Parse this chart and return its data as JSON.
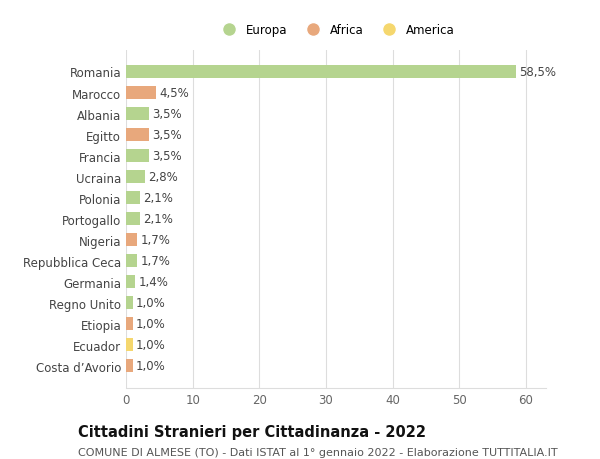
{
  "categories": [
    "Romania",
    "Marocco",
    "Albania",
    "Egitto",
    "Francia",
    "Ucraina",
    "Polonia",
    "Portogallo",
    "Nigeria",
    "Repubblica Ceca",
    "Germania",
    "Regno Unito",
    "Etiopia",
    "Ecuador",
    "Costa d’Avorio"
  ],
  "values": [
    58.5,
    4.5,
    3.5,
    3.5,
    3.5,
    2.8,
    2.1,
    2.1,
    1.7,
    1.7,
    1.4,
    1.0,
    1.0,
    1.0,
    1.0
  ],
  "labels": [
    "58,5%",
    "4,5%",
    "3,5%",
    "3,5%",
    "3,5%",
    "2,8%",
    "2,1%",
    "2,1%",
    "1,7%",
    "1,7%",
    "1,4%",
    "1,0%",
    "1,0%",
    "1,0%",
    "1,0%"
  ],
  "colors": [
    "#b5d48f",
    "#e8a87c",
    "#b5d48f",
    "#e8a87c",
    "#b5d48f",
    "#b5d48f",
    "#b5d48f",
    "#b5d48f",
    "#e8a87c",
    "#b5d48f",
    "#b5d48f",
    "#b5d48f",
    "#e8a87c",
    "#f5d76e",
    "#e8a87c"
  ],
  "legend": [
    {
      "label": "Europa",
      "color": "#b5d48f"
    },
    {
      "label": "Africa",
      "color": "#e8a87c"
    },
    {
      "label": "America",
      "color": "#f5d76e"
    }
  ],
  "xlim": [
    0,
    63
  ],
  "xticks": [
    0,
    10,
    20,
    30,
    40,
    50,
    60
  ],
  "title": "Cittadini Stranieri per Cittadinanza - 2022",
  "subtitle": "COMUNE DI ALMESE (TO) - Dati ISTAT al 1° gennaio 2022 - Elaborazione TUTTITALIA.IT",
  "bg_color": "#ffffff",
  "grid_color": "#dddddd",
  "label_fontsize": 8.5,
  "tick_fontsize": 8.5,
  "title_fontsize": 10.5,
  "subtitle_fontsize": 8.0
}
